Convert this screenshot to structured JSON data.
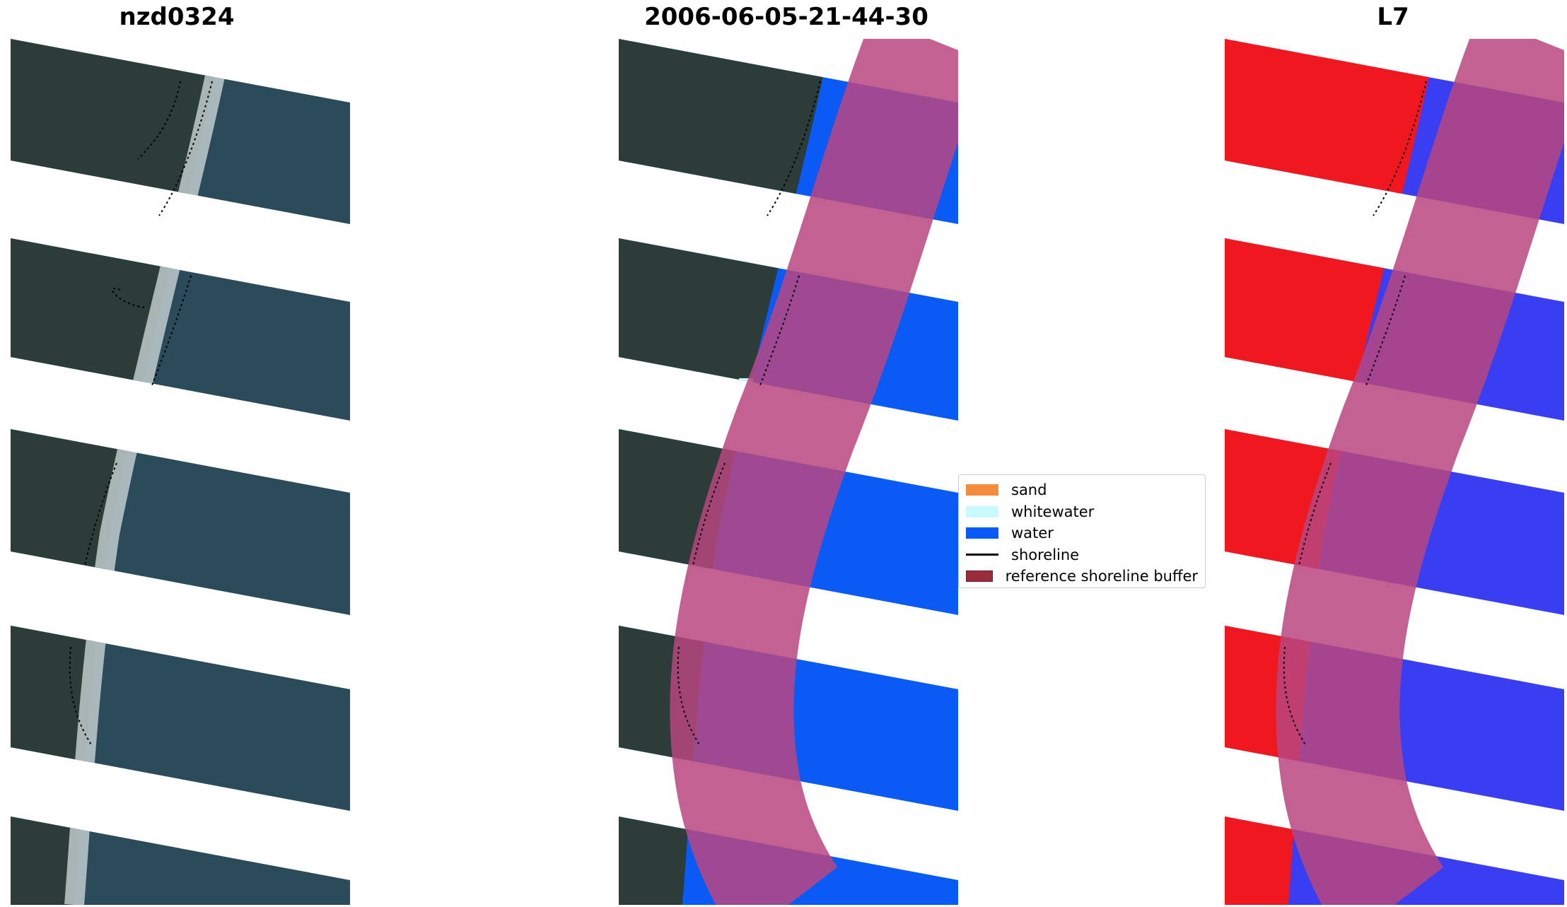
{
  "panels": [
    {
      "title": "nzd0324"
    },
    {
      "title": "2006-06-05-21-44-30"
    },
    {
      "title": "L7"
    }
  ],
  "legend": {
    "items": [
      {
        "label": "sand",
        "color": "#f58c3c",
        "kind": "patch"
      },
      {
        "label": "whitewater",
        "color": "#c8faff",
        "kind": "patch"
      },
      {
        "label": "water",
        "color": "#0a5af5",
        "kind": "patch"
      },
      {
        "label": "shoreline",
        "color": "#000000",
        "kind": "line"
      },
      {
        "label": "reference shoreline buffer",
        "color": "#9b2d3a",
        "kind": "patch"
      }
    ]
  },
  "colors": {
    "rgb_land": "#2c3c38",
    "rgb_water": "#2b4a5a",
    "rgb_surf": "#c9d3d5",
    "class_water": "#0a5af5",
    "buffer": "#b9467f",
    "index_land": "#f0181f",
    "index_water": "#3a3ef2"
  }
}
